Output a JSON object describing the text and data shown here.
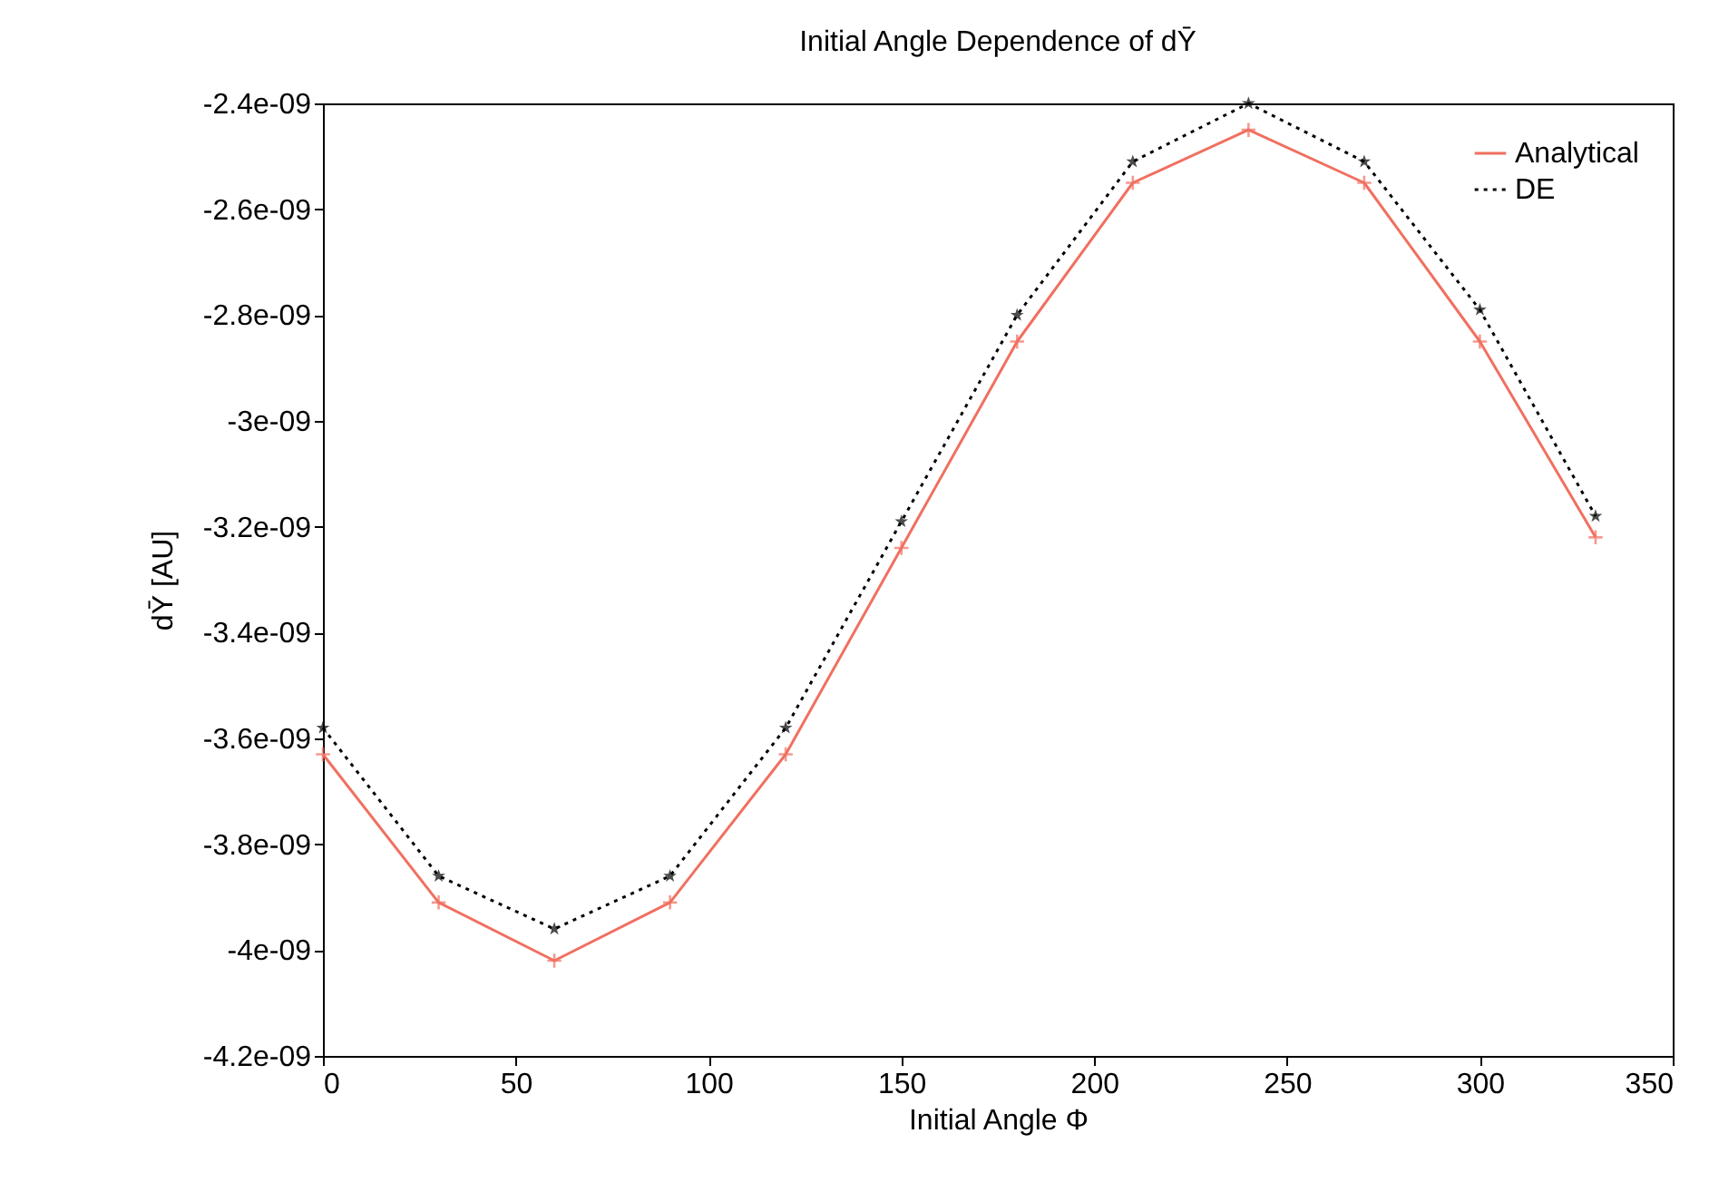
{
  "chart_data": {
    "type": "line",
    "title": "Initial Angle Dependence of dȲ",
    "xlabel": "Initial Angle Φ",
    "ylabel": "dȲ [AU]",
    "x": [
      0,
      30,
      60,
      90,
      120,
      150,
      180,
      210,
      240,
      270,
      300,
      330
    ],
    "series": [
      {
        "name": "Analytical",
        "color": "#f07060",
        "marker": "cross",
        "line_style": "solid",
        "values": [
          -3.63e-09,
          -3.91e-09,
          -4.02e-09,
          -3.91e-09,
          -3.63e-09,
          -3.24e-09,
          -2.85e-09,
          -2.55e-09,
          -2.45e-09,
          -2.55e-09,
          -2.85e-09,
          -3.22e-09
        ]
      },
      {
        "name": "DE",
        "color": "#000000",
        "marker": "star",
        "line_style": "dotted",
        "values": [
          -3.58e-09,
          -3.86e-09,
          -3.96e-09,
          -3.86e-09,
          -3.58e-09,
          -3.19e-09,
          -2.8e-09,
          -2.51e-09,
          -2.4e-09,
          -2.51e-09,
          -2.79e-09,
          -3.18e-09
        ]
      }
    ],
    "xlim": [
      0,
      350
    ],
    "xticks": [
      0,
      50,
      100,
      150,
      200,
      250,
      300,
      350
    ],
    "ylim": [
      -4.2e-09,
      -2.4e-09
    ],
    "yticks": [
      {
        "value": -4.2e-09,
        "label": "-4.2e-09"
      },
      {
        "value": -4e-09,
        "label": "-4e-09"
      },
      {
        "value": -3.8e-09,
        "label": "-3.8e-09"
      },
      {
        "value": -3.6e-09,
        "label": "-3.6e-09"
      },
      {
        "value": -3.4e-09,
        "label": "-3.4e-09"
      },
      {
        "value": -3.2e-09,
        "label": "-3.2e-09"
      },
      {
        "value": -3e-09,
        "label": "-3e-09"
      },
      {
        "value": -2.8e-09,
        "label": "-2.8e-09"
      },
      {
        "value": -2.6e-09,
        "label": "-2.6e-09"
      },
      {
        "value": -2.4e-09,
        "label": "-2.4e-09"
      }
    ],
    "legend": "top right",
    "grid": false
  }
}
